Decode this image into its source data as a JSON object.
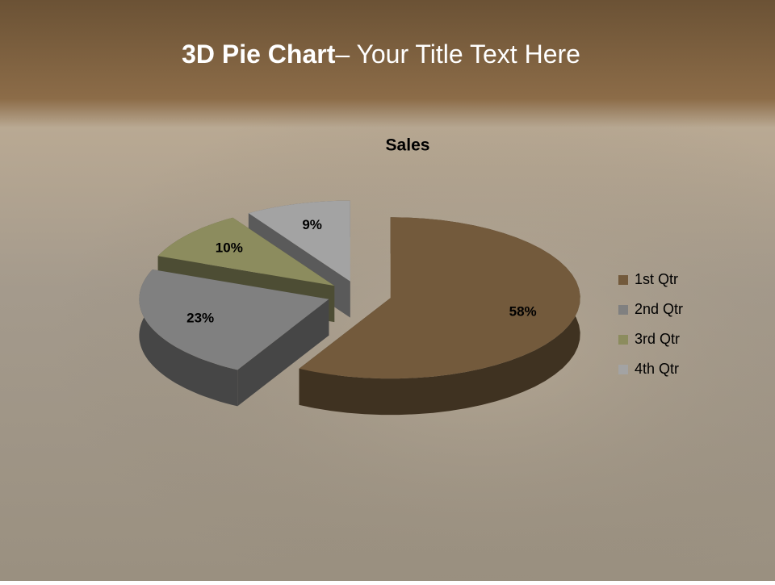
{
  "slide": {
    "title_bold": "3D Pie Chart",
    "title_rest": "– Your Title Text Here"
  },
  "chart_data": {
    "type": "pie3d",
    "title": "Sales",
    "categories": [
      "1st Qtr",
      "2nd Qtr",
      "3rd Qtr",
      "4th Qtr"
    ],
    "values": [
      58,
      23,
      10,
      9
    ],
    "value_labels": [
      "58%",
      "23%",
      "10%",
      "9%"
    ],
    "colors": [
      "#735a3c",
      "#808080",
      "#8c8c5e",
      "#a3a3a3"
    ],
    "legend": "right"
  }
}
